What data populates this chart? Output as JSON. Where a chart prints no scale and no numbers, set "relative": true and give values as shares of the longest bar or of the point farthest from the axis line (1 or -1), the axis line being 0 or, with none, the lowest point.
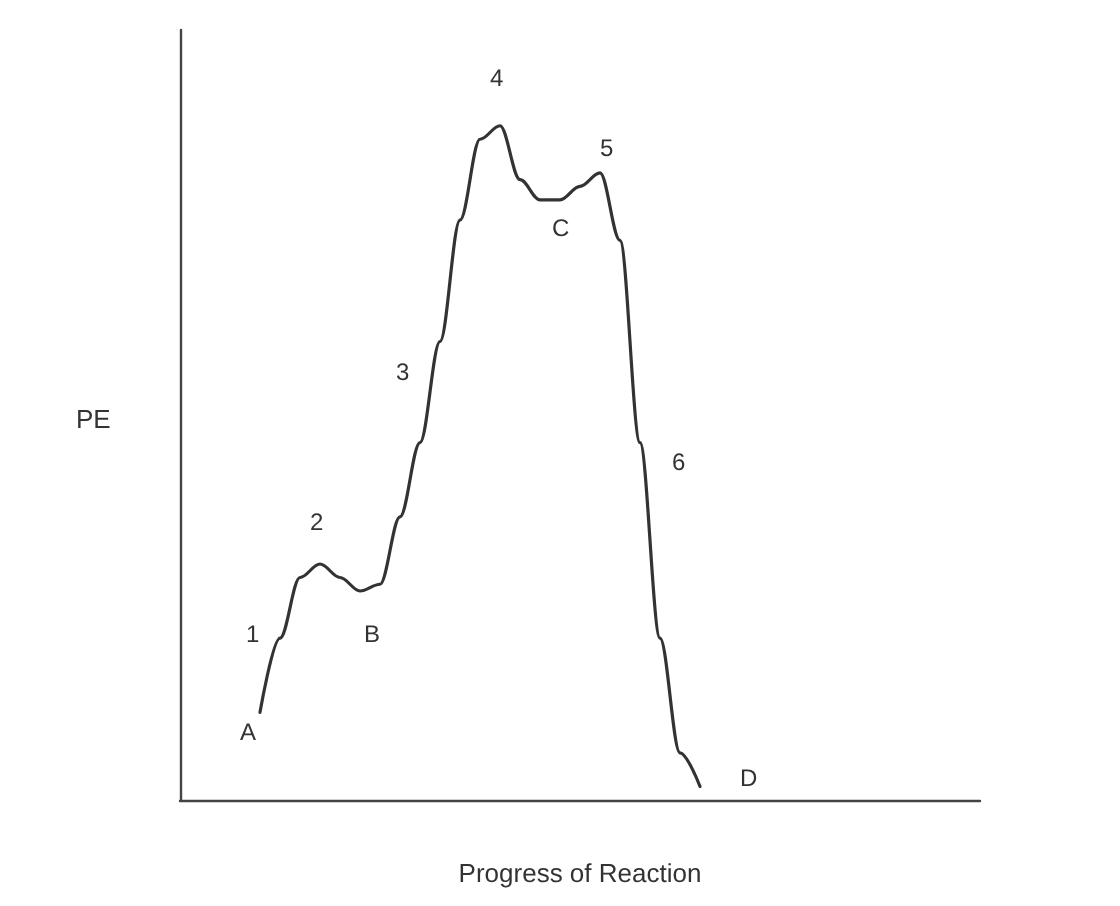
{
  "chart_data": {
    "type": "line",
    "relative": true,
    "xlabel": "Progress of Reaction",
    "ylabel": "PE",
    "categories": [
      null,
      null,
      null,
      null,
      null,
      null,
      null,
      null,
      null,
      null,
      null,
      null,
      null,
      null,
      null,
      null,
      null,
      null,
      null,
      null,
      null,
      null,
      null,
      null,
      null,
      null,
      null,
      null,
      null,
      null,
      null,
      null,
      null,
      null,
      null,
      null,
      null,
      null,
      null,
      null,
      null
    ],
    "series": [
      {
        "color": "#333333",
        "values": [
          null,
          null,
          null,
          null,
          0.13,
          0.24,
          0.33,
          0.35,
          0.33,
          0.31,
          0.32,
          0.42,
          0.53,
          0.68,
          0.86,
          0.98,
          1,
          0.92,
          0.89,
          0.89,
          0.91,
          0.93,
          0.83,
          0.53,
          0.24,
          0.07,
          0.02,
          null,
          null,
          null,
          null,
          null,
          null,
          null,
          null,
          null,
          null,
          null,
          null,
          null,
          null
        ]
      }
    ],
    "annotations": [
      "A",
      "1",
      "2",
      "B",
      "3",
      "4",
      "5",
      "C",
      "6",
      "D"
    ],
    "marker": "none",
    "line_style": "solid",
    "grid": false
  }
}
